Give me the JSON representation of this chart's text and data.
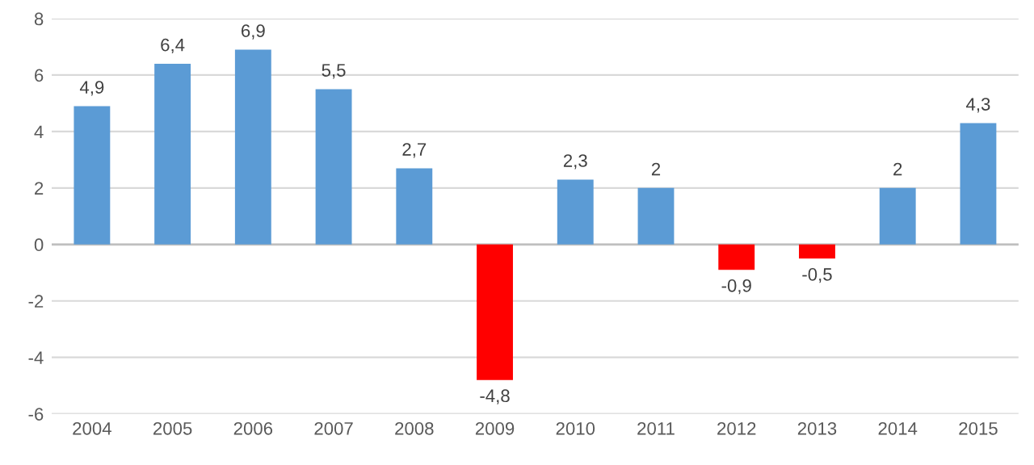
{
  "chart_data": {
    "type": "bar",
    "categories": [
      "2004",
      "2005",
      "2006",
      "2007",
      "2008",
      "2009",
      "2010",
      "2011",
      "2012",
      "2013",
      "2014",
      "2015"
    ],
    "values": [
      4.9,
      6.4,
      6.9,
      5.5,
      2.7,
      -4.8,
      2.3,
      2,
      -0.9,
      -0.5,
      2,
      4.3
    ],
    "colors": [
      "#5b9bd5",
      "#5b9bd5",
      "#5b9bd5",
      "#5b9bd5",
      "#5b9bd5",
      "#ff0000",
      "#5b9bd5",
      "#5b9bd5",
      "#ff0000",
      "#ff0000",
      "#5b9bd5",
      "#5b9bd5"
    ],
    "value_labels": [
      "4,9",
      "6,4",
      "6,9",
      "5,5",
      "2,7",
      "-4,8",
      "2,3",
      "2",
      "-0,9",
      "-0,5",
      "2",
      "4,3"
    ],
    "ylim": [
      -6,
      8
    ],
    "yticks": [
      -6,
      -4,
      -2,
      0,
      2,
      4,
      6,
      8
    ],
    "grid": "y"
  }
}
